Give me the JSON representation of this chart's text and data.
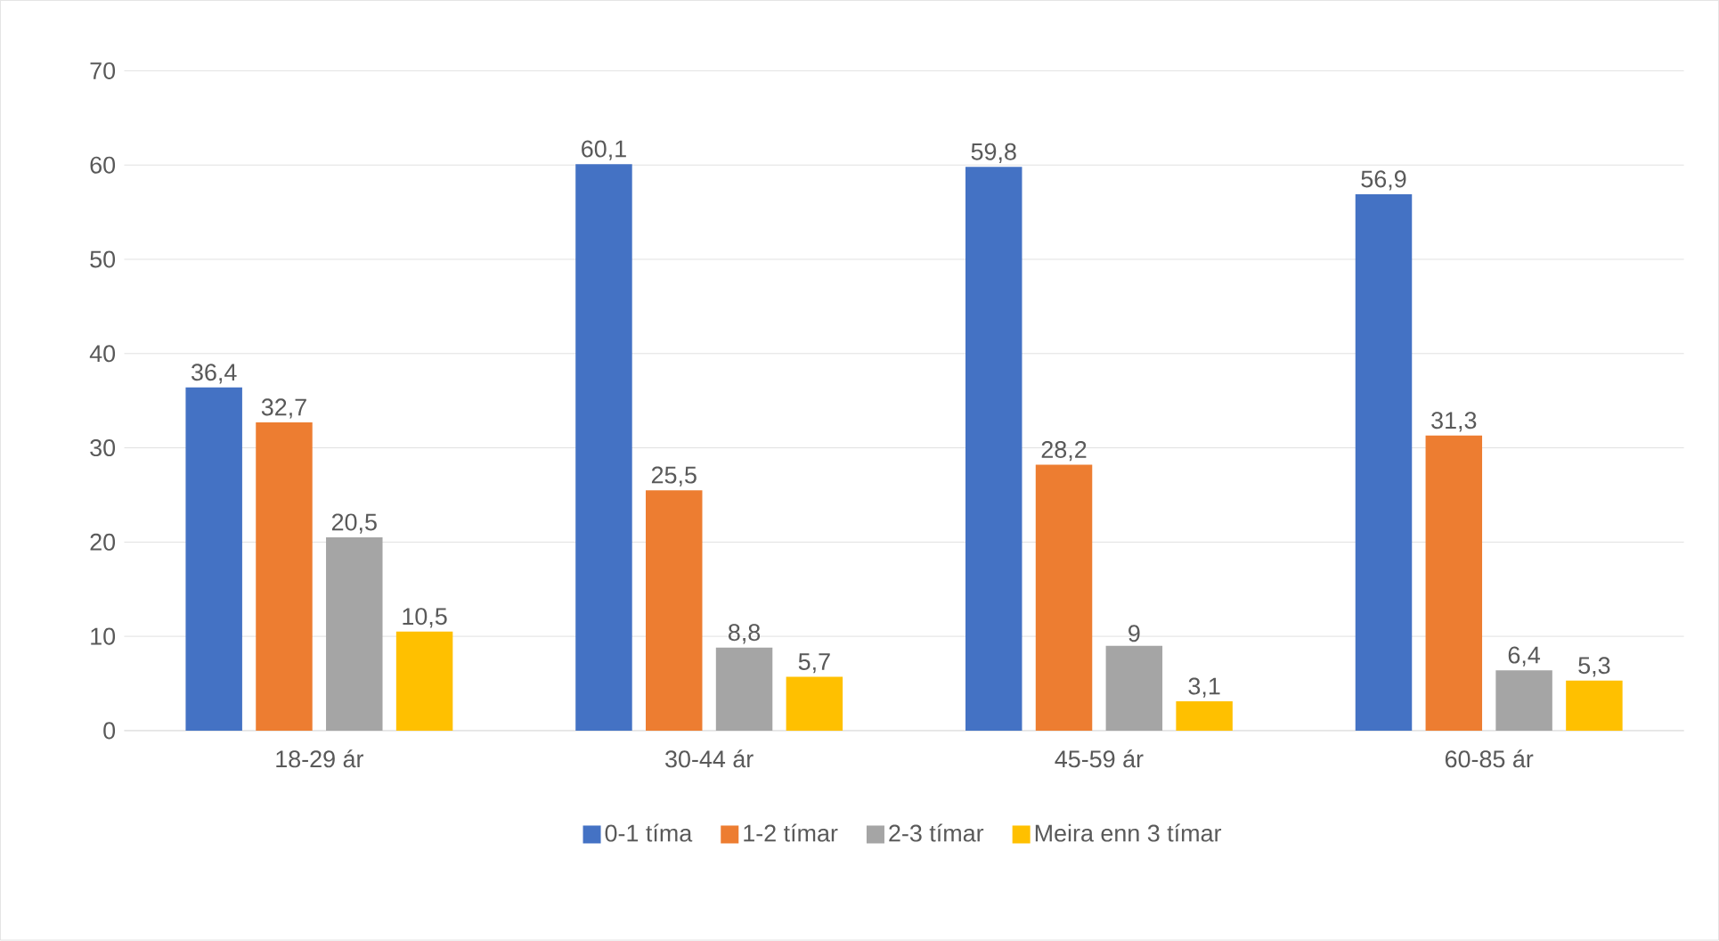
{
  "chart_data": {
    "type": "bar",
    "categories": [
      "18-29 ár",
      "30-44 ár",
      "45-59 ár",
      "60-85 ár"
    ],
    "series": [
      {
        "name": "0-1 tíma",
        "color": "#4472c4",
        "values": [
          36.4,
          60.1,
          59.8,
          56.9
        ],
        "value_labels": [
          "36,4",
          "60,1",
          "59,8",
          "56,9"
        ]
      },
      {
        "name": "1-2 tímar",
        "color": "#ed7d31",
        "values": [
          32.7,
          25.5,
          28.2,
          31.3
        ],
        "value_labels": [
          "32,7",
          "25,5",
          "28,2",
          "31,3"
        ]
      },
      {
        "name": "2-3 tímar",
        "color": "#a5a5a5",
        "values": [
          20.5,
          8.8,
          9,
          6.4
        ],
        "value_labels": [
          "20,5",
          "8,8",
          "9",
          "6,4"
        ]
      },
      {
        "name": "Meira enn 3 tímar",
        "color": "#ffc000",
        "values": [
          10.5,
          5.7,
          3.1,
          5.3
        ],
        "value_labels": [
          "10,5",
          "5,7",
          "3,1",
          "5,3"
        ]
      }
    ],
    "ylim": [
      0,
      70
    ],
    "yticks": [
      0,
      10,
      20,
      30,
      40,
      50,
      60,
      70
    ],
    "grid": "y",
    "legend": "bottom"
  }
}
